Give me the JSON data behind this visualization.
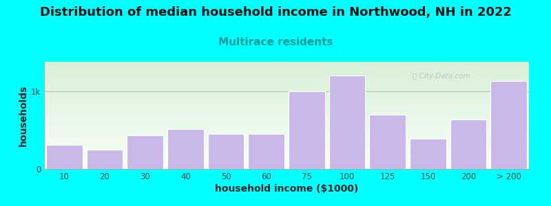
{
  "title": "Distribution of median household income in Northwood, NH in 2022",
  "subtitle": "Multirace residents",
  "xlabel": "household income ($1000)",
  "ylabel": "households",
  "background_color": "#00FFFF",
  "plot_bg_top": "#d8f0d8",
  "plot_bg_bottom": "#f8fff8",
  "bar_color": "#c9b8e8",
  "bar_edge_color": "#ffffff",
  "watermark": "ⓘ City-Data.com",
  "categories": [
    "10",
    "20",
    "30",
    "40",
    "50",
    "60",
    "75",
    "100",
    "125",
    "150",
    "200",
    "> 200"
  ],
  "values": [
    310,
    250,
    430,
    510,
    450,
    455,
    1000,
    1200,
    700,
    390,
    640,
    1130
  ],
  "ytick_labels": [
    "0",
    "1k"
  ],
  "ytick_values": [
    0,
    1000
  ],
  "ylim": [
    0,
    1380
  ],
  "title_fontsize": 13,
  "subtitle_fontsize": 11,
  "axis_label_fontsize": 10,
  "tick_fontsize": 8.5
}
